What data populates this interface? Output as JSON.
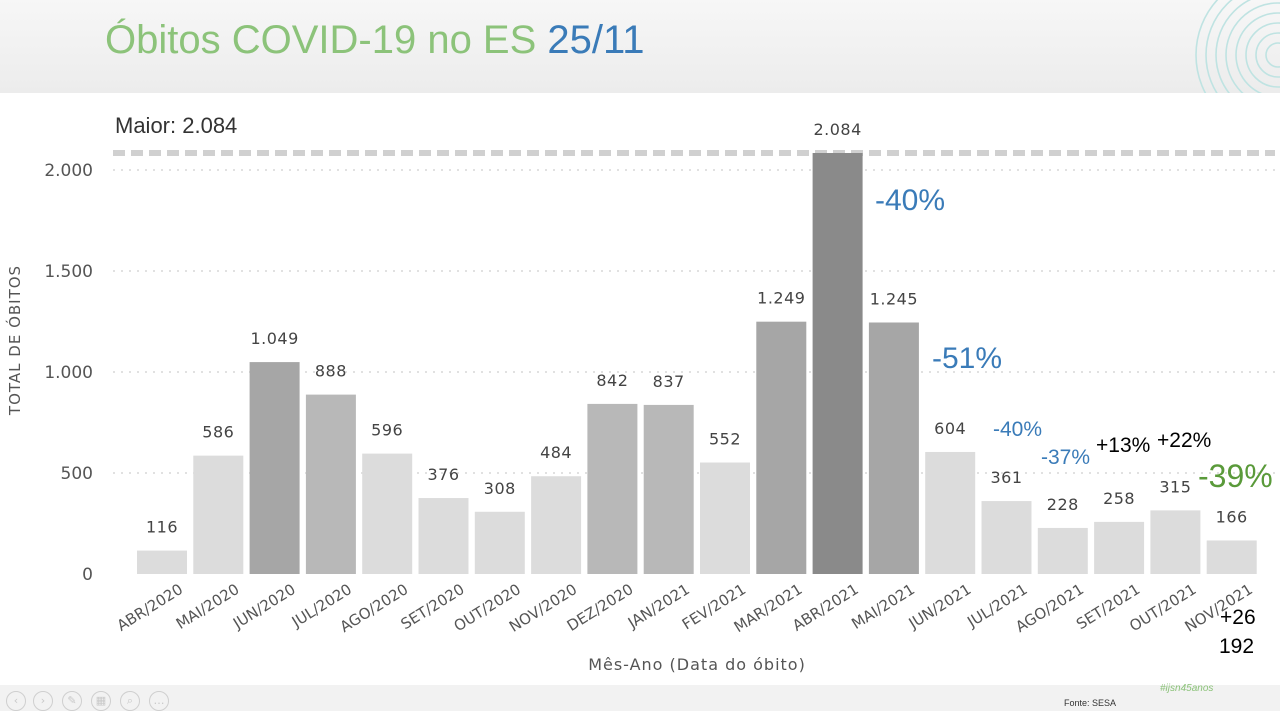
{
  "header": {
    "title": "Óbitos COVID-19 no ES",
    "date": "25/11"
  },
  "chart_data": {
    "type": "bar",
    "categories": [
      "ABR/2020",
      "MAI/2020",
      "JUN/2020",
      "JUL/2020",
      "AGO/2020",
      "SET/2020",
      "OUT/2020",
      "NOV/2020",
      "DEZ/2020",
      "JAN/2021",
      "FEV/2021",
      "MAR/2021",
      "ABR/2021",
      "MAI/2021",
      "JUN/2021",
      "JUL/2021",
      "AGO/2021",
      "SET/2021",
      "OUT/2021",
      "NOV/2021"
    ],
    "values": [
      116,
      586,
      1049,
      888,
      596,
      376,
      308,
      484,
      842,
      837,
      552,
      1249,
      2084,
      1245,
      604,
      361,
      228,
      258,
      315,
      166
    ],
    "value_labels": [
      "116",
      "586",
      "1.049",
      "888",
      "596",
      "376",
      "308",
      "484",
      "842",
      "837",
      "552",
      "1.249",
      "2.084",
      "1.245",
      "604",
      "361",
      "228",
      "258",
      "315",
      "166"
    ],
    "xlabel": "Mês-Ano (Data do óbito)",
    "ylabel": "TOTAL DE ÓBITOS",
    "ylim": [
      0,
      2084
    ],
    "yticks": [
      0,
      500,
      1000,
      1500,
      2000
    ],
    "ytick_labels": [
      "0",
      "500",
      "1.000",
      "1.500",
      "2.000"
    ],
    "grid": true,
    "max_line": {
      "value": 2084,
      "label": "Maior: 2.084"
    },
    "annotations": [
      {
        "text": "-40%",
        "color": "#3a7bb8"
      },
      {
        "text": "-51%",
        "color": "#3a7bb8"
      },
      {
        "text": "-40%",
        "color": "#3a7bb8"
      },
      {
        "text": "-37%",
        "color": "#3a7bb8"
      },
      {
        "text": "+13%",
        "color": "#000000"
      },
      {
        "text": "+22%",
        "color": "#000000"
      },
      {
        "text": "-39%",
        "color": "#5a9a3a"
      },
      {
        "text": "+26",
        "color": "#000000"
      },
      {
        "text": "192",
        "color": "#000000"
      }
    ],
    "colors": {
      "light": "#dcdcdc",
      "medium": "#b8b8b8",
      "dark": "#a6a6a6",
      "darkest": "#8a8a8a"
    }
  },
  "footer": {
    "hashtag": "#ijsn45anos",
    "source": "Fonte: SESA",
    "nav_icons": [
      "back-icon",
      "forward-icon",
      "pen-icon",
      "slides-icon",
      "zoom-icon",
      "more-icon"
    ]
  }
}
